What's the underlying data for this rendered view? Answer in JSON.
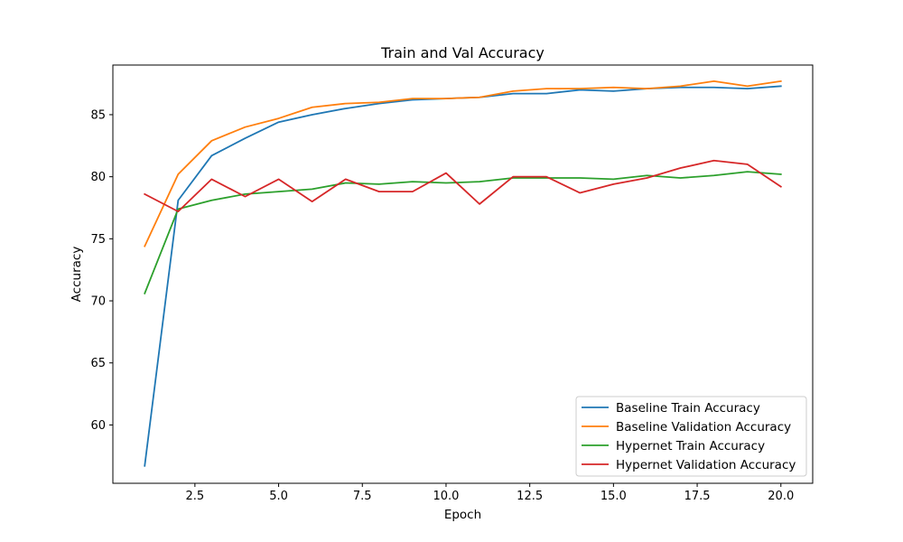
{
  "chart_data": {
    "type": "line",
    "title": "Train and Val Accuracy",
    "xlabel": "Epoch",
    "ylabel": "Accuracy",
    "xlim": [
      0.05,
      20.95
    ],
    "ylim": [
      55.3,
      89.0
    ],
    "xticks": [
      2.5,
      5.0,
      7.5,
      10.0,
      12.5,
      15.0,
      17.5,
      20.0
    ],
    "xtick_labels": [
      "2.5",
      "5.0",
      "7.5",
      "10.0",
      "12.5",
      "15.0",
      "17.5",
      "20.0"
    ],
    "yticks": [
      60,
      65,
      70,
      75,
      80,
      85
    ],
    "ytick_labels": [
      "60",
      "65",
      "70",
      "75",
      "80",
      "85"
    ],
    "grid": false,
    "legend_position": "lower-right",
    "x": [
      1,
      2,
      3,
      4,
      5,
      6,
      7,
      8,
      9,
      10,
      11,
      12,
      13,
      14,
      15,
      16,
      17,
      18,
      19,
      20
    ],
    "series": [
      {
        "name": "Baseline Train Accuracy",
        "color": "#1f77b4",
        "values": [
          56.7,
          78.1,
          81.7,
          83.1,
          84.4,
          85.0,
          85.5,
          85.9,
          86.2,
          86.3,
          86.4,
          86.7,
          86.7,
          87.0,
          86.9,
          87.1,
          87.2,
          87.2,
          87.1,
          87.3
        ]
      },
      {
        "name": "Baseline Validation Accuracy",
        "color": "#ff7f0e",
        "values": [
          74.4,
          80.2,
          82.9,
          84.0,
          84.7,
          85.6,
          85.9,
          86.0,
          86.3,
          86.3,
          86.4,
          86.9,
          87.1,
          87.1,
          87.2,
          87.1,
          87.3,
          87.7,
          87.3,
          87.7
        ]
      },
      {
        "name": "Hypernet Train Accuracy",
        "color": "#2ca02c",
        "values": [
          70.6,
          77.4,
          78.1,
          78.6,
          78.8,
          79.0,
          79.5,
          79.4,
          79.6,
          79.5,
          79.6,
          79.9,
          79.9,
          79.9,
          79.8,
          80.1,
          79.9,
          80.1,
          80.4,
          80.2
        ]
      },
      {
        "name": "Hypernet Validation Accuracy",
        "color": "#d62728",
        "values": [
          78.6,
          77.2,
          79.8,
          78.4,
          79.8,
          78.0,
          79.8,
          78.8,
          78.8,
          80.3,
          77.8,
          80.0,
          80.0,
          78.7,
          79.4,
          79.9,
          80.7,
          81.3,
          81.0,
          79.2
        ]
      }
    ]
  }
}
